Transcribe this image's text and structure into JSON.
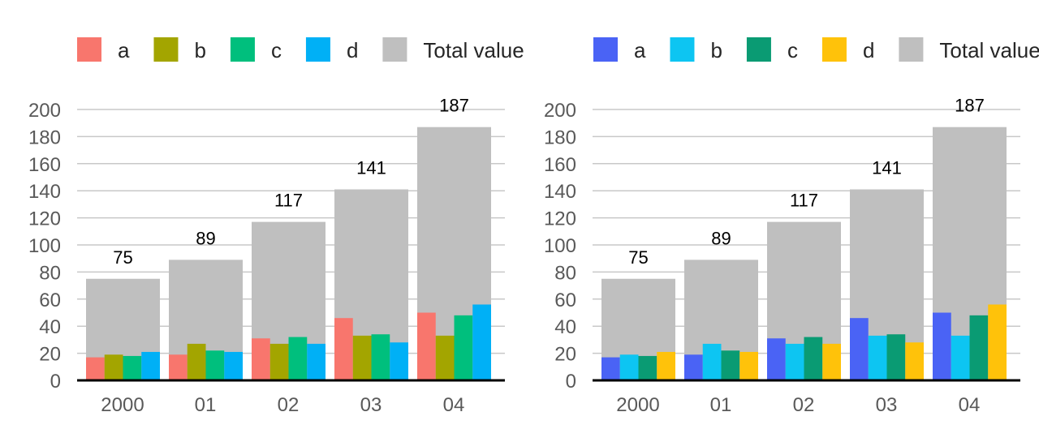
{
  "chart_data": [
    {
      "type": "bar",
      "categories": [
        "2000",
        "01",
        "02",
        "03",
        "04"
      ],
      "series": [
        {
          "name": "a",
          "color": "#F8766D",
          "values": [
            17,
            19,
            31,
            46,
            50
          ]
        },
        {
          "name": "b",
          "color": "#A3A500",
          "values": [
            19,
            27,
            27,
            33,
            33
          ]
        },
        {
          "name": "c",
          "color": "#00BF7D",
          "values": [
            18,
            22,
            32,
            34,
            48
          ]
        },
        {
          "name": "d",
          "color": "#00B0F6",
          "values": [
            21,
            21,
            27,
            28,
            56
          ]
        }
      ],
      "total": {
        "name": "Total value",
        "color": "#BFBFBF",
        "values": [
          75,
          89,
          117,
          141,
          187
        ]
      },
      "ylim": [
        0,
        200
      ],
      "yticks": [
        "0",
        "20",
        "40",
        "60",
        "80",
        "100",
        "120",
        "140",
        "160",
        "180",
        "200"
      ],
      "grid": true,
      "legend": "top"
    },
    {
      "type": "bar",
      "categories": [
        "2000",
        "01",
        "02",
        "03",
        "04"
      ],
      "series": [
        {
          "name": "a",
          "color": "#4A63F5",
          "values": [
            17,
            19,
            31,
            46,
            50
          ]
        },
        {
          "name": "b",
          "color": "#0DC5F2",
          "values": [
            19,
            27,
            27,
            33,
            33
          ]
        },
        {
          "name": "c",
          "color": "#0A9B73",
          "values": [
            18,
            22,
            32,
            34,
            48
          ]
        },
        {
          "name": "d",
          "color": "#FFC20A",
          "values": [
            21,
            21,
            27,
            28,
            56
          ]
        }
      ],
      "total": {
        "name": "Total value",
        "color": "#BFBFBF",
        "values": [
          75,
          89,
          117,
          141,
          187
        ]
      },
      "ylim": [
        0,
        200
      ],
      "yticks": [
        "0",
        "20",
        "40",
        "60",
        "80",
        "100",
        "120",
        "140",
        "160",
        "180",
        "200"
      ],
      "grid": true,
      "legend": "top"
    }
  ]
}
